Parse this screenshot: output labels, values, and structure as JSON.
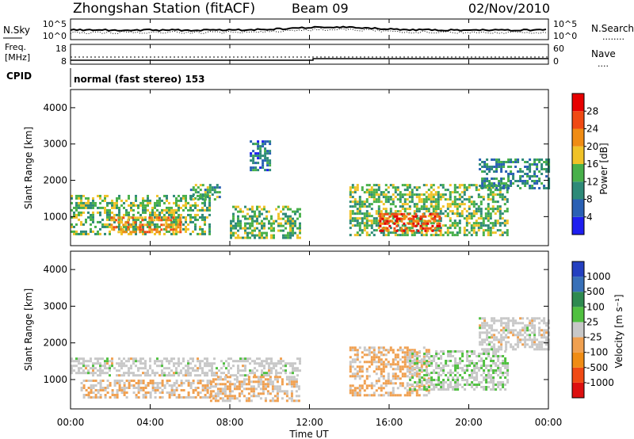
{
  "header": {
    "station_title": "Zhongshan Station (fitACF)",
    "beam_label": "Beam 09",
    "date_label": "02/Nov/2010"
  },
  "noise_panel": {
    "left_label": "N.Sky",
    "right_label": "N.Search",
    "right_dots": "........",
    "left_top_tick": "10^5",
    "left_bottom_tick": "10^0",
    "right_top_tick": "10^5",
    "right_bottom_tick": "10^0"
  },
  "freq_panel": {
    "left_label_line1": "Freq.",
    "left_label_line2": "[MHz]",
    "right_label": "Nave",
    "right_dots": "....",
    "left_top_tick": "18",
    "left_bottom_tick": "8",
    "right_top_tick": "60",
    "right_bottom_tick": "0"
  },
  "cpid_panel": {
    "label": "CPID",
    "mode_text": "normal (fast stereo) 153"
  },
  "x_axis": {
    "ticks": [
      "00:00",
      "04:00",
      "08:00",
      "12:00",
      "16:00",
      "20:00",
      "00:00"
    ],
    "label": "Time UT"
  },
  "power_panel": {
    "ylabel": "Slant Range [km]",
    "yticks": [
      "4000",
      "3000",
      "2000",
      "1000"
    ],
    "colorbar_label": "Power [dB]",
    "colorbar_ticks": [
      "28",
      "24",
      "20",
      "16",
      "12",
      "8",
      "4"
    ]
  },
  "velocity_panel": {
    "ylabel": "Slant Range [km]",
    "yticks": [
      "4000",
      "3000",
      "2000",
      "1000"
    ],
    "colorbar_label": "Velocity [m s⁻¹]",
    "colorbar_ticks": [
      "1000",
      "500",
      "100",
      "25",
      "-25",
      "-100",
      "-500",
      "-1000"
    ]
  },
  "colors": {
    "power_scale": [
      "#1e1ef0",
      "#2a60b4",
      "#2e8a78",
      "#48b04a",
      "#f0c228",
      "#f08c14",
      "#f04a14",
      "#e60000"
    ],
    "velocity_scale": [
      "#dd1010",
      "#f04a14",
      "#f08c14",
      "#f0a050",
      "#c8c8c8",
      "#50c040",
      "#2e8a50",
      "#3870b8",
      "#2440c0"
    ]
  },
  "chart_data": [
    {
      "type": "heatmap",
      "title": "",
      "xlabel": "Time UT",
      "ylabel": "Slant Range [km]",
      "xlim": [
        0,
        24
      ],
      "ylim": [
        200,
        4500
      ],
      "value_label": "Power [dB]",
      "value_range": [
        0,
        32
      ],
      "regions": [
        {
          "t": [
            0.0,
            7.0
          ],
          "r": [
            500,
            1600
          ],
          "value": 14
        },
        {
          "t": [
            2.0,
            5.5
          ],
          "r": [
            600,
            1000
          ],
          "value": 22
        },
        {
          "t": [
            6.0,
            7.5
          ],
          "r": [
            1500,
            1900
          ],
          "value": 12
        },
        {
          "t": [
            8.0,
            11.5
          ],
          "r": [
            400,
            1300
          ],
          "value": 14
        },
        {
          "t": [
            9.0,
            10.0
          ],
          "r": [
            2300,
            3100
          ],
          "value": 8
        },
        {
          "t": [
            14.0,
            22.0
          ],
          "r": [
            500,
            1900
          ],
          "value": 14
        },
        {
          "t": [
            15.5,
            18.5
          ],
          "r": [
            600,
            1100
          ],
          "value": 26
        },
        {
          "t": [
            20.5,
            24.0
          ],
          "r": [
            1800,
            2600
          ],
          "value": 10
        }
      ]
    },
    {
      "type": "heatmap",
      "title": "",
      "xlabel": "Time UT",
      "ylabel": "Slant Range [km]",
      "xlim": [
        0,
        24
      ],
      "ylim": [
        200,
        4500
      ],
      "value_label": "Velocity [m s⁻¹]",
      "value_range": [
        -1000,
        1000
      ],
      "regions": [
        {
          "t": [
            0.5,
            7.0
          ],
          "r": [
            500,
            1000
          ],
          "value": -100
        },
        {
          "t": [
            0.0,
            11.5
          ],
          "r": [
            1100,
            1600
          ],
          "value": 0
        },
        {
          "t": [
            7.0,
            11.5
          ],
          "r": [
            400,
            1100
          ],
          "value": -100
        },
        {
          "t": [
            14.0,
            18.0
          ],
          "r": [
            600,
            1900
          ],
          "value": -150
        },
        {
          "t": [
            17.0,
            22.0
          ],
          "r": [
            700,
            1800
          ],
          "value": 60
        },
        {
          "t": [
            20.5,
            24.0
          ],
          "r": [
            1800,
            2700
          ],
          "value": 0
        }
      ]
    }
  ]
}
